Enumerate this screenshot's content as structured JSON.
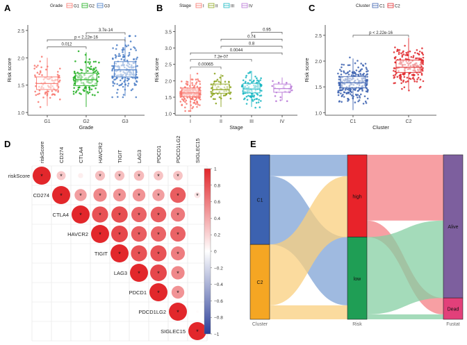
{
  "figure_labels": [
    "A",
    "B",
    "C",
    "D",
    "E"
  ],
  "colors": {
    "G1": "#F8766D",
    "G2": "#1FAE1F",
    "G3": "#4A7DC6",
    "I": "#F8766D",
    "II": "#8AA21A",
    "III": "#16B6C2",
    "IV": "#B674D6",
    "C1": "#3C62B0",
    "C2": "#E0282B",
    "high": "#E8232A",
    "low": "#1F9E55",
    "alive": "#7D5F9E",
    "dead": "#E2407A",
    "sankey_c1": "#3C62B0",
    "sankey_c2": "#F5A623"
  },
  "chart_data": [
    {
      "id": "A",
      "type": "box",
      "title": "",
      "ylabel": "Risk score",
      "xlabel": "Grade",
      "legend_title": "Grade",
      "legend": [
        "G1",
        "G2",
        "G3"
      ],
      "categories": [
        "G1",
        "G2",
        "G3"
      ],
      "ylim": [
        0.95,
        2.6
      ],
      "yticks": [
        "1.0",
        "1.5",
        "2.0",
        "2.5"
      ],
      "ytick_values": [
        1.0,
        1.5,
        2.0,
        2.5
      ],
      "boxes": [
        {
          "q1": 1.42,
          "median": 1.53,
          "q3": 1.65,
          "whisker_low": 1.12,
          "whisker_high": 2.0,
          "n": 90
        },
        {
          "q1": 1.49,
          "median": 1.6,
          "q3": 1.72,
          "whisker_low": 1.1,
          "whisker_high": 2.1,
          "n": 140
        },
        {
          "q1": 1.65,
          "median": 1.78,
          "q3": 1.93,
          "whisker_low": 1.3,
          "whisker_high": 2.38,
          "n": 190
        }
      ],
      "pvalues": [
        {
          "from": 0,
          "to": 1,
          "label": "0.012",
          "y": 2.2
        },
        {
          "from": 0,
          "to": 2,
          "label": "p < 2.22e-16",
          "y": 2.33
        },
        {
          "from": 1,
          "to": 2,
          "label": "3.7e-14",
          "y": 2.46
        }
      ]
    },
    {
      "id": "B",
      "type": "box",
      "title": "",
      "ylabel": "Risk score",
      "xlabel": "Stage",
      "legend_title": "Stage",
      "legend": [
        "I",
        "II",
        "III",
        "IV"
      ],
      "categories": [
        "I",
        "II",
        "III",
        "IV"
      ],
      "ylim": [
        0.95,
        3.7
      ],
      "yticks": [
        "1.0",
        "1.5",
        "2.0",
        "2.5",
        "3.0",
        "3.5"
      ],
      "ytick_values": [
        1.0,
        1.5,
        2.0,
        2.5,
        3.0,
        3.5
      ],
      "boxes": [
        {
          "q1": 1.52,
          "median": 1.63,
          "q3": 1.78,
          "whisker_low": 1.1,
          "whisker_high": 2.2,
          "n": 190
        },
        {
          "q1": 1.62,
          "median": 1.73,
          "q3": 1.9,
          "whisker_low": 1.2,
          "whisker_high": 2.2,
          "n": 60
        },
        {
          "q1": 1.63,
          "median": 1.75,
          "q3": 1.92,
          "whisker_low": 1.2,
          "whisker_high": 2.3,
          "n": 110
        },
        {
          "q1": 1.65,
          "median": 1.76,
          "q3": 1.9,
          "whisker_low": 1.4,
          "whisker_high": 2.1,
          "n": 25
        }
      ],
      "pvalues": [
        {
          "from": 0,
          "to": 1,
          "label": "0.00065",
          "y": 2.42
        },
        {
          "from": 0,
          "to": 2,
          "label": "7.2e-07",
          "y": 2.65
        },
        {
          "from": 0,
          "to": 3,
          "label": "0.0044",
          "y": 2.85
        },
        {
          "from": 1,
          "to": 3,
          "label": "0.8",
          "y": 3.05
        },
        {
          "from": 1,
          "to": 3,
          "label": "0.74",
          "y": 3.27
        },
        {
          "from": 2,
          "to": 3,
          "label": "0.95",
          "y": 3.48
        }
      ]
    },
    {
      "id": "C",
      "type": "box",
      "title": "",
      "ylabel": "Risk score",
      "xlabel": "Cluster",
      "legend_title": "Cluster",
      "legend": [
        "C1",
        "C2"
      ],
      "categories": [
        "C1",
        "C2"
      ],
      "ylim": [
        0.95,
        2.7
      ],
      "yticks": [
        "1.0",
        "1.5",
        "2.0",
        "2.5"
      ],
      "ytick_values": [
        1.0,
        1.5,
        2.0,
        2.5
      ],
      "boxes": [
        {
          "q1": 1.48,
          "median": 1.58,
          "q3": 1.7,
          "whisker_low": 1.05,
          "whisker_high": 2.05,
          "n": 230
        },
        {
          "q1": 1.78,
          "median": 1.88,
          "q3": 2.02,
          "whisker_low": 1.45,
          "whisker_high": 2.45,
          "n": 190
        }
      ],
      "pvalues": [
        {
          "from": 0,
          "to": 1,
          "label": "p < 2.22e-16",
          "y": 2.5
        }
      ]
    },
    {
      "id": "D",
      "type": "heatmap",
      "title": "",
      "labels": [
        "riskScore",
        "CD274",
        "CTLA4",
        "HAVCR2",
        "TIGIT",
        "LAG3",
        "PDCD1",
        "PDCD1LG2",
        "SIGLEC15"
      ],
      "matrix": [
        [
          1,
          0.25,
          0.08,
          0.3,
          0.3,
          0.32,
          0.28,
          0.28,
          0.0
        ],
        [
          0.25,
          1,
          0.45,
          0.55,
          0.5,
          0.5,
          0.45,
          0.75,
          0.12
        ],
        [
          0.08,
          0.45,
          1,
          0.8,
          0.82,
          0.72,
          0.75,
          0.62,
          0.0
        ],
        [
          0.3,
          0.55,
          0.8,
          1,
          0.85,
          0.75,
          0.72,
          0.72,
          0.0
        ],
        [
          0.3,
          0.5,
          0.82,
          0.85,
          1,
          0.8,
          0.8,
          0.6,
          0.0
        ],
        [
          0.32,
          0.5,
          0.72,
          0.75,
          0.8,
          1,
          0.85,
          0.55,
          0.0
        ],
        [
          0.28,
          0.45,
          0.75,
          0.72,
          0.8,
          0.85,
          1,
          0.5,
          0.0
        ],
        [
          0.28,
          0.75,
          0.62,
          0.72,
          0.6,
          0.55,
          0.5,
          1,
          0.02
        ],
        [
          0.0,
          0.12,
          0.0,
          0.0,
          0.0,
          0.0,
          0.0,
          0.02,
          1
        ]
      ],
      "significant": [
        [
          true,
          true,
          false,
          true,
          true,
          true,
          true,
          true,
          false
        ],
        [
          true,
          true,
          true,
          true,
          true,
          true,
          true,
          true,
          true
        ],
        [
          false,
          true,
          true,
          true,
          true,
          true,
          true,
          true,
          false
        ],
        [
          true,
          true,
          true,
          true,
          true,
          true,
          true,
          true,
          false
        ],
        [
          true,
          true,
          true,
          true,
          true,
          true,
          true,
          true,
          false
        ],
        [
          true,
          true,
          true,
          true,
          true,
          true,
          true,
          true,
          false
        ],
        [
          true,
          true,
          true,
          true,
          true,
          true,
          true,
          true,
          false
        ],
        [
          true,
          true,
          true,
          true,
          true,
          true,
          true,
          true,
          false
        ],
        [
          false,
          true,
          false,
          false,
          false,
          false,
          false,
          false,
          true
        ]
      ],
      "star": "*",
      "colorbar_ticks": [
        "1",
        "0.8",
        "0.6",
        "0.4",
        "0.2",
        "0",
        "−0.2",
        "−0.4",
        "−0.6",
        "−0.8",
        "−1"
      ],
      "colorbar_values": [
        1,
        0.8,
        0.6,
        0.4,
        0.2,
        0,
        -0.2,
        -0.4,
        -0.6,
        -0.8,
        -1
      ]
    },
    {
      "id": "E",
      "type": "sankey",
      "axes": [
        "Cluster",
        "Risk",
        "Fustat"
      ],
      "nodes": {
        "Cluster": [
          {
            "name": "C1",
            "value": 0.545
          },
          {
            "name": "C2",
            "value": 0.455
          }
        ],
        "Risk": [
          {
            "name": "high",
            "value": 0.5
          },
          {
            "name": "low",
            "value": 0.5
          }
        ],
        "Fustat": [
          {
            "name": "Alive",
            "value": 0.87
          },
          {
            "name": "Dead",
            "value": 0.13
          }
        ]
      },
      "flows_cluster_risk": [
        {
          "from": "C1",
          "to": "high",
          "value": 0.13
        },
        {
          "from": "C1",
          "to": "low",
          "value": 0.415
        },
        {
          "from": "C2",
          "to": "high",
          "value": 0.37
        },
        {
          "from": "C2",
          "to": "low",
          "value": 0.085
        }
      ],
      "flows_risk_fustat": [
        {
          "from": "high",
          "to": "Alive",
          "value": 0.4
        },
        {
          "from": "high",
          "to": "Dead",
          "value": 0.1
        },
        {
          "from": "low",
          "to": "Alive",
          "value": 0.47
        },
        {
          "from": "low",
          "to": "Dead",
          "value": 0.03
        }
      ]
    }
  ]
}
